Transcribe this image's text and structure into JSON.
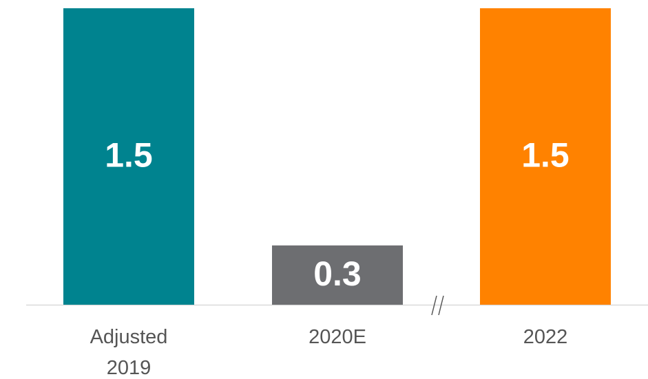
{
  "chart_data": {
    "type": "bar",
    "categories": [
      "Adjusted 2019",
      "2020E",
      "2022"
    ],
    "values": [
      1.5,
      0.3,
      1.5
    ],
    "colors": [
      "#00838f",
      "#6d6e71",
      "#ff8200"
    ],
    "ylim": [
      0,
      1.5
    ]
  }
}
